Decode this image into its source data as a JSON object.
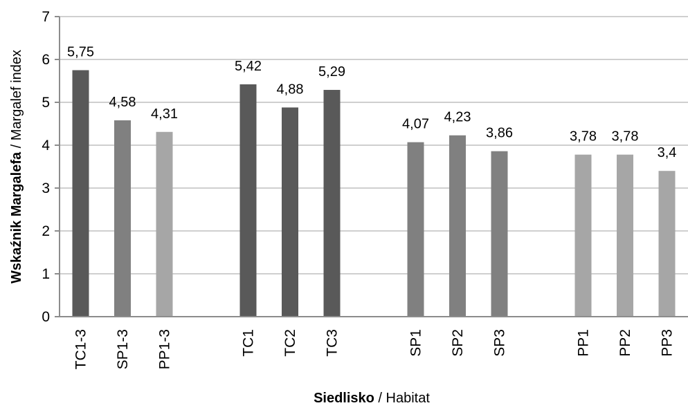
{
  "chart_data": {
    "type": "bar",
    "categories": [
      "TC1-3",
      "SP1-3",
      "PP1-3",
      "TC1",
      "TC2",
      "TC3",
      "SP1",
      "SP2",
      "SP3",
      "PP1",
      "PP2",
      "PP3"
    ],
    "values": [
      5.75,
      4.58,
      4.31,
      5.42,
      4.88,
      5.29,
      4.07,
      4.23,
      3.86,
      3.78,
      3.78,
      3.4
    ],
    "data_labels": [
      "5,75",
      "4,58",
      "4,31",
      "5,42",
      "4,88",
      "5,29",
      "4,07",
      "4,23",
      "3,86",
      "3,78",
      "3,78",
      "3,4"
    ],
    "groups": [
      [
        "TC1-3",
        "SP1-3",
        "PP1-3"
      ],
      [
        "TC1",
        "TC2",
        "TC3"
      ],
      [
        "SP1",
        "SP2",
        "SP3"
      ],
      [
        "PP1",
        "PP2",
        "PP3"
      ]
    ],
    "bar_colors": {
      "TC": "#595959",
      "SP": "#808080",
      "PP": "#a6a6a6"
    },
    "ylim": [
      0,
      7
    ],
    "yticks": [
      "0",
      "1",
      "2",
      "3",
      "4",
      "5",
      "6",
      "7"
    ],
    "ylabel_bold": "Wskaźnik Margalefa",
    "ylabel_rest": " / Margalef index",
    "xlabel_bold": "Siedlisko",
    "xlabel_rest": " / Habitat",
    "grid": true,
    "gridline_color": "#bfbfbf",
    "axis_color": "#8c8c8c"
  }
}
